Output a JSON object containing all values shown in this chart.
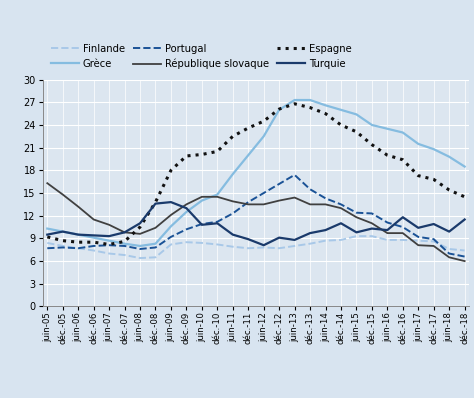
{
  "ylim": [
    0,
    30
  ],
  "yticks": [
    0,
    3,
    6,
    9,
    12,
    15,
    18,
    21,
    24,
    27,
    30
  ],
  "background_color": "#dce6f0",
  "plot_bg": "#dce6f0",
  "x_labels": [
    "juin-05",
    "déc.-05",
    "juin-06",
    "déc.-06",
    "juin-07",
    "déc.-07",
    "juin-08",
    "déc.-08",
    "juin-09",
    "déc.-09",
    "juin-10",
    "déc.-10",
    "juin-11",
    "déc.-11",
    "juin-12",
    "déc.-12",
    "juin-13",
    "déc.-13",
    "juin-14",
    "déc.-14",
    "juin-15",
    "déc.-15",
    "juin-16",
    "déc.-16",
    "juin-17",
    "déc.-17",
    "juin-18",
    "déc.-18"
  ],
  "series": [
    {
      "name": "Finlande",
      "color": "#a8c8e8",
      "linestyle": "--",
      "linewidth": 1.4,
      "values": [
        8.4,
        8.0,
        7.7,
        7.4,
        7.0,
        6.8,
        6.4,
        6.5,
        8.2,
        8.5,
        8.4,
        8.2,
        7.9,
        7.7,
        7.8,
        7.7,
        8.0,
        8.3,
        8.7,
        8.8,
        9.3,
        9.3,
        8.8,
        8.8,
        8.7,
        8.6,
        7.6,
        7.4
      ]
    },
    {
      "name": "Grèce",
      "color": "#85bce0",
      "linestyle": "-",
      "linewidth": 1.6,
      "values": [
        10.3,
        9.9,
        9.5,
        9.1,
        8.7,
        8.3,
        8.0,
        8.3,
        10.6,
        12.5,
        14.0,
        14.8,
        17.5,
        20.0,
        22.5,
        26.0,
        27.3,
        27.3,
        26.6,
        26.0,
        25.4,
        24.0,
        23.5,
        23.0,
        21.5,
        20.8,
        19.8,
        18.5
      ]
    },
    {
      "name": "Portugal",
      "color": "#1a5296",
      "linestyle": "--",
      "linewidth": 1.4,
      "values": [
        7.7,
        7.8,
        7.7,
        8.0,
        8.1,
        8.0,
        7.6,
        7.8,
        9.2,
        10.2,
        10.9,
        11.2,
        12.3,
        13.8,
        15.0,
        16.2,
        17.4,
        15.5,
        14.3,
        13.5,
        12.4,
        12.3,
        11.1,
        10.5,
        9.2,
        8.9,
        7.0,
        6.6
      ]
    },
    {
      "name": "République slovaque",
      "color": "#404040",
      "linestyle": "-",
      "linewidth": 1.3,
      "values": [
        16.3,
        14.8,
        13.2,
        11.5,
        10.8,
        9.8,
        9.6,
        10.4,
        12.1,
        13.5,
        14.5,
        14.5,
        13.9,
        13.5,
        13.5,
        14.0,
        14.4,
        13.5,
        13.5,
        13.0,
        11.8,
        11.0,
        9.7,
        9.7,
        8.1,
        8.0,
        6.5,
        6.0
      ]
    },
    {
      "name": "Espagne",
      "color": "#111111",
      "linestyle": ":",
      "linewidth": 2.2,
      "values": [
        9.2,
        8.7,
        8.5,
        8.5,
        8.2,
        8.6,
        10.5,
        13.8,
        18.0,
        19.9,
        20.1,
        20.5,
        22.5,
        23.6,
        24.5,
        26.1,
        26.8,
        26.3,
        25.5,
        24.0,
        23.1,
        21.4,
        20.0,
        19.4,
        17.3,
        16.8,
        15.4,
        14.5
      ]
    },
    {
      "name": "Turquie",
      "color": "#1a3a6b",
      "linestyle": "-",
      "linewidth": 1.6,
      "values": [
        9.5,
        9.9,
        9.5,
        9.4,
        9.3,
        9.8,
        11.0,
        13.6,
        13.8,
        13.0,
        10.8,
        11.0,
        9.5,
        8.9,
        8.1,
        9.1,
        8.8,
        9.7,
        10.1,
        11.0,
        9.8,
        10.3,
        10.1,
        11.8,
        10.4,
        10.9,
        9.9,
        11.5
      ]
    }
  ]
}
